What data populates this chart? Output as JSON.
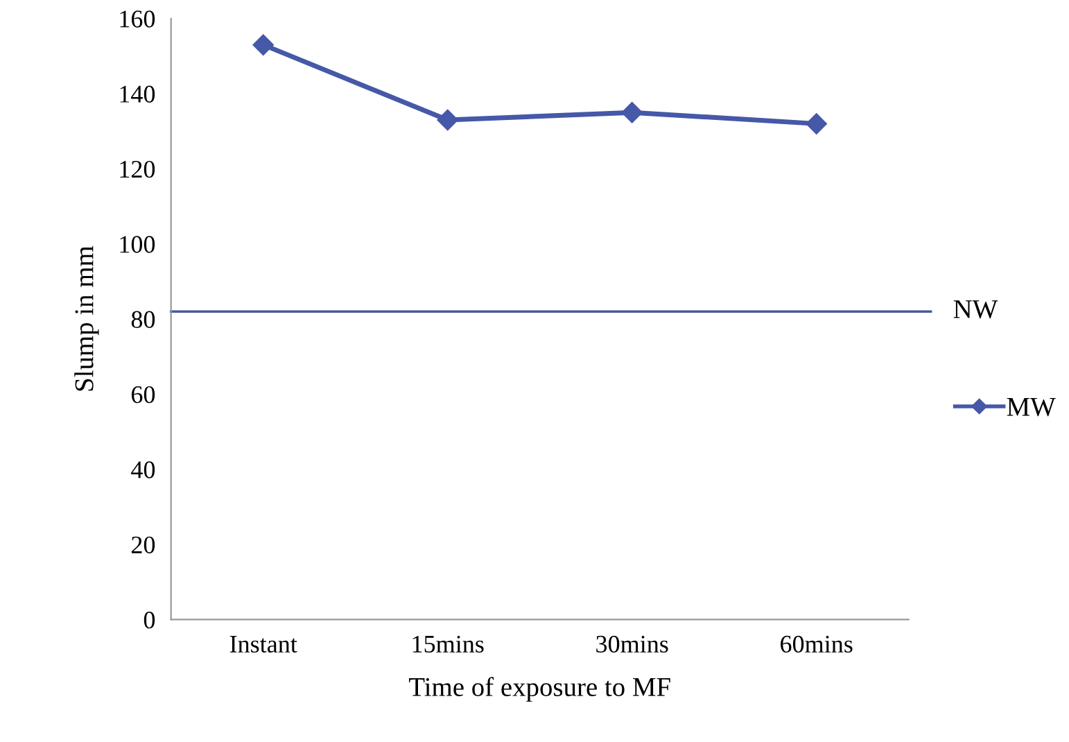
{
  "chart_data": {
    "type": "line",
    "xlabel": "Time of exposure to MF",
    "ylabel": "Slump in mm",
    "categories": [
      "Instant",
      "15mins",
      "30mins",
      "60mins"
    ],
    "series": [
      {
        "name": "MW",
        "color": "#4658a8",
        "values": [
          153,
          133,
          135,
          132
        ]
      }
    ],
    "ylim": [
      0,
      160
    ],
    "yticks": [
      0,
      20,
      40,
      60,
      80,
      100,
      120,
      140,
      160
    ],
    "ref_lines": [
      {
        "axis": "y",
        "value": 82,
        "label": "NW",
        "color": "#4a5a9c"
      }
    ],
    "marker": "diamond",
    "legend": "right",
    "grid": false
  }
}
